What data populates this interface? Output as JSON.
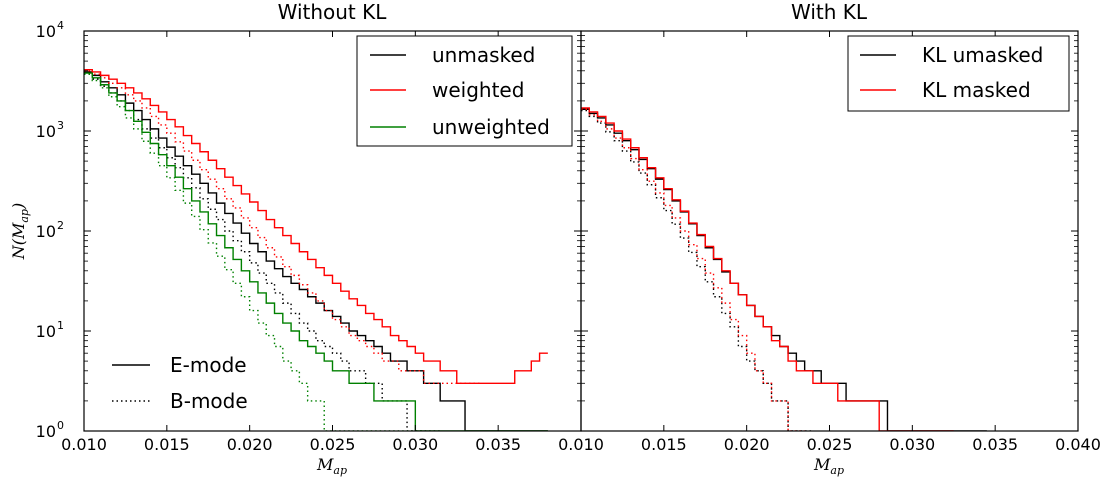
{
  "chart_data": [
    {
      "type": "line",
      "title": "Without KL",
      "xlabel": "M_ap",
      "ylabel": "N(M_ap)",
      "xlim": [
        0.01,
        0.04
      ],
      "ylim": [
        1,
        10000
      ],
      "yscale": "log",
      "x_ticks": [
        "0.010",
        "0.015",
        "0.020",
        "0.025",
        "0.030",
        "0.035"
      ],
      "y_ticks": [
        {
          "base": "10",
          "exp": "0"
        },
        {
          "base": "10",
          "exp": "1"
        },
        {
          "base": "10",
          "exp": "2"
        },
        {
          "base": "10",
          "exp": "3"
        },
        {
          "base": "10",
          "exp": "4"
        }
      ],
      "legend_placement": "top-right",
      "legend2_placement": "bottom-left",
      "legend": [
        "unmasked",
        "weighted",
        "unweighted"
      ],
      "style_legend": [
        "E-mode",
        "B-mode"
      ],
      "bin_edges_start": 0.01,
      "bin_width": 0.0005,
      "series": [
        {
          "name": "unmasked",
          "mode": "E-mode",
          "color": "#000000",
          "dash": "solid",
          "values": [
            3900,
            3600,
            3100,
            2700,
            2300,
            1900,
            1600,
            1300,
            1050,
            850,
            690,
            560,
            450,
            370,
            300,
            240,
            190,
            150,
            120,
            95,
            75,
            62,
            50,
            42,
            35,
            30,
            26,
            22,
            19,
            16,
            14,
            12,
            10,
            9,
            8,
            7,
            6,
            5,
            5,
            4,
            4,
            3,
            3,
            2,
            2,
            2,
            1,
            1,
            1,
            1,
            1,
            1,
            1,
            1,
            1,
            1
          ]
        },
        {
          "name": "unmasked",
          "mode": "B-mode",
          "color": "#000000",
          "dash": "dotted",
          "values": [
            3700,
            3300,
            2800,
            2400,
            2000,
            1600,
            1300,
            1050,
            850,
            680,
            540,
            430,
            340,
            270,
            210,
            165,
            130,
            100,
            80,
            62,
            48,
            38,
            30,
            24,
            19,
            15,
            12,
            10,
            8,
            7,
            6,
            5,
            4,
            4,
            3,
            3,
            2,
            2,
            2,
            1,
            1,
            1,
            1
          ]
        },
        {
          "name": "weighted",
          "mode": "E-mode",
          "color": "#ff0000",
          "dash": "solid",
          "values": [
            4100,
            3900,
            3600,
            3300,
            3000,
            2700,
            2400,
            2100,
            1800,
            1550,
            1300,
            1100,
            900,
            750,
            620,
            510,
            420,
            345,
            285,
            235,
            195,
            160,
            130,
            108,
            90,
            75,
            62,
            52,
            43,
            36,
            30,
            25,
            21,
            18,
            15,
            13,
            11,
            9,
            8,
            7,
            6,
            5,
            5,
            4,
            4,
            3,
            3,
            3,
            3,
            3,
            3,
            3,
            4,
            4,
            5,
            6
          ]
        },
        {
          "name": "weighted",
          "mode": "B-mode",
          "color": "#ff0000",
          "dash": "dotted",
          "values": [
            4000,
            3700,
            3400,
            3000,
            2700,
            2300,
            2000,
            1700,
            1400,
            1150,
            950,
            780,
            630,
            510,
            410,
            330,
            265,
            210,
            170,
            135,
            108,
            86,
            68,
            55,
            44,
            36,
            29,
            24,
            20,
            16,
            13,
            11,
            9,
            8,
            7,
            6,
            5,
            5,
            4,
            4,
            4,
            3,
            3,
            3,
            3,
            3,
            3,
            3
          ]
        },
        {
          "name": "unweighted",
          "mode": "E-mode",
          "color": "#008000",
          "dash": "solid",
          "values": [
            3800,
            3400,
            2900,
            2400,
            2000,
            1600,
            1250,
            970,
            750,
            580,
            450,
            345,
            265,
            200,
            155,
            118,
            90,
            68,
            52,
            40,
            31,
            24,
            19,
            15,
            12,
            10,
            8,
            7,
            6,
            5,
            4,
            4,
            3,
            3,
            3,
            2,
            2,
            2,
            2,
            2,
            1,
            1,
            1,
            1,
            1,
            1,
            1,
            1,
            1,
            1,
            1,
            1,
            1,
            1,
            1,
            1
          ]
        },
        {
          "name": "unweighted",
          "mode": "B-mode",
          "color": "#008000",
          "dash": "dotted",
          "values": [
            3700,
            3200,
            2700,
            2200,
            1750,
            1350,
            1050,
            790,
            600,
            450,
            340,
            255,
            190,
            140,
            103,
            76,
            56,
            41,
            30,
            22,
            16,
            12,
            9,
            7,
            5,
            4,
            3,
            2,
            2,
            1,
            1,
            1,
            1,
            1,
            1,
            1,
            1,
            1,
            1,
            1,
            1
          ]
        }
      ]
    },
    {
      "type": "line",
      "title": "With KL",
      "xlabel": "M_ap",
      "ylabel": "",
      "xlim": [
        0.01,
        0.04
      ],
      "ylim": [
        1,
        10000
      ],
      "yscale": "log",
      "x_ticks": [
        "0.010",
        "0.015",
        "0.020",
        "0.025",
        "0.030",
        "0.035",
        "0.040"
      ],
      "legend_placement": "top-right",
      "legend": [
        "KL umasked",
        "KL masked"
      ],
      "bin_edges_start": 0.01,
      "bin_width": 0.0005,
      "series": [
        {
          "name": "KL umasked",
          "mode": "E-mode",
          "color": "#000000",
          "dash": "solid",
          "values": [
            1650,
            1500,
            1350,
            1150,
            950,
            800,
            650,
            520,
            420,
            330,
            260,
            200,
            155,
            118,
            90,
            68,
            52,
            39,
            30,
            23,
            18,
            14,
            11,
            9,
            7,
            6,
            5,
            4,
            4,
            3,
            3,
            3,
            2,
            2,
            2,
            2,
            2,
            1,
            1,
            1,
            1,
            1,
            1,
            1,
            1,
            1,
            1,
            1,
            1
          ]
        },
        {
          "name": "KL umasked",
          "mode": "B-mode",
          "color": "#000000",
          "dash": "dotted",
          "values": [
            1600,
            1400,
            1200,
            980,
            800,
            630,
            490,
            380,
            290,
            215,
            160,
            117,
            85,
            61,
            44,
            31,
            22,
            15,
            11,
            7,
            5,
            4,
            3,
            2,
            2,
            1,
            1,
            1
          ]
        },
        {
          "name": "KL masked",
          "mode": "E-mode",
          "color": "#ff0000",
          "dash": "solid",
          "values": [
            1700,
            1550,
            1400,
            1200,
            1000,
            830,
            680,
            540,
            430,
            340,
            265,
            205,
            158,
            120,
            92,
            70,
            53,
            40,
            30,
            23,
            18,
            14,
            11,
            8,
            7,
            5,
            4,
            4,
            3,
            3,
            3,
            2,
            2,
            2,
            2,
            2,
            1,
            1,
            1,
            1,
            1,
            1,
            1,
            1,
            1
          ]
        },
        {
          "name": "KL masked",
          "mode": "B-mode",
          "color": "#ff0000",
          "dash": "dotted",
          "values": [
            1650,
            1450,
            1250,
            1050,
            850,
            680,
            530,
            410,
            315,
            240,
            180,
            135,
            100,
            73,
            53,
            38,
            27,
            19,
            13,
            9,
            6,
            4,
            3,
            2,
            2,
            1,
            1
          ]
        }
      ]
    }
  ]
}
